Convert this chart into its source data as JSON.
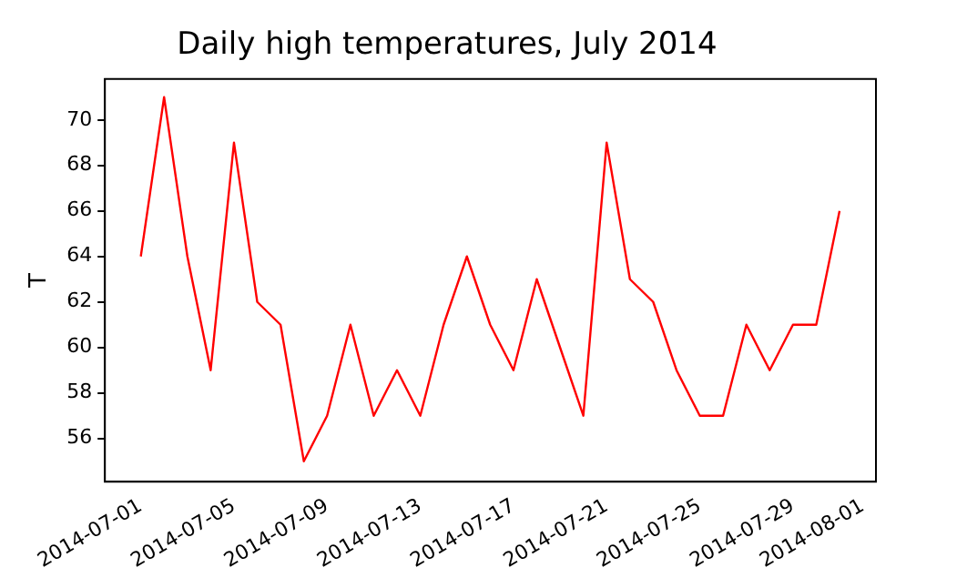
{
  "chart_data": {
    "type": "line",
    "title": "Daily high temperatures, July 2014",
    "ylabel": "T",
    "x": [
      "2014-07-01",
      "2014-07-02",
      "2014-07-03",
      "2014-07-04",
      "2014-07-05",
      "2014-07-06",
      "2014-07-07",
      "2014-07-08",
      "2014-07-09",
      "2014-07-10",
      "2014-07-11",
      "2014-07-12",
      "2014-07-13",
      "2014-07-14",
      "2014-07-15",
      "2014-07-16",
      "2014-07-17",
      "2014-07-18",
      "2014-07-19",
      "2014-07-20",
      "2014-07-21",
      "2014-07-22",
      "2014-07-23",
      "2014-07-24",
      "2014-07-25",
      "2014-07-26",
      "2014-07-27",
      "2014-07-28",
      "2014-07-29",
      "2014-07-30",
      "2014-07-31"
    ],
    "series": [
      {
        "color": "#ff0000",
        "values": [
          64,
          71,
          64,
          59,
          69,
          62,
          61,
          55,
          57,
          61,
          57,
          59,
          57,
          61,
          64,
          61,
          59,
          63,
          60,
          57,
          69,
          63,
          62,
          59,
          57,
          57,
          61,
          59,
          61,
          61,
          66
        ]
      }
    ],
    "xlim": [
      "2014-06-29T11:00",
      "2014-08-01T13:30"
    ],
    "xticks": [
      "2014-07-01",
      "2014-07-05",
      "2014-07-09",
      "2014-07-13",
      "2014-07-17",
      "2014-07-21",
      "2014-07-25",
      "2014-07-29",
      "2014-08-01"
    ],
    "ylim": [
      54.1,
      71.8
    ],
    "yticks": [
      56,
      58,
      60,
      62,
      64,
      66,
      68,
      70
    ],
    "grid": false,
    "legend": false,
    "marker": "none",
    "line_style": "solid"
  }
}
